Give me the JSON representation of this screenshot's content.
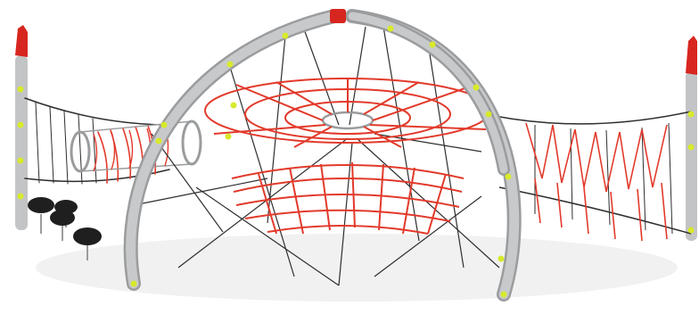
{
  "scene": {
    "subject": "rope-climbing-dome-playground",
    "colors": {
      "background": "#ffffff",
      "steel": "#c2c4c6",
      "steel_shade": "#9a9c9e",
      "rope_red": "#e23a2b",
      "rope_dark": "#2e2e2e",
      "cap_red": "#d7261f",
      "joint_yellow": "#d7ea2b",
      "seat_black": "#1f1f1f",
      "shadow": "#eeeeee"
    }
  }
}
